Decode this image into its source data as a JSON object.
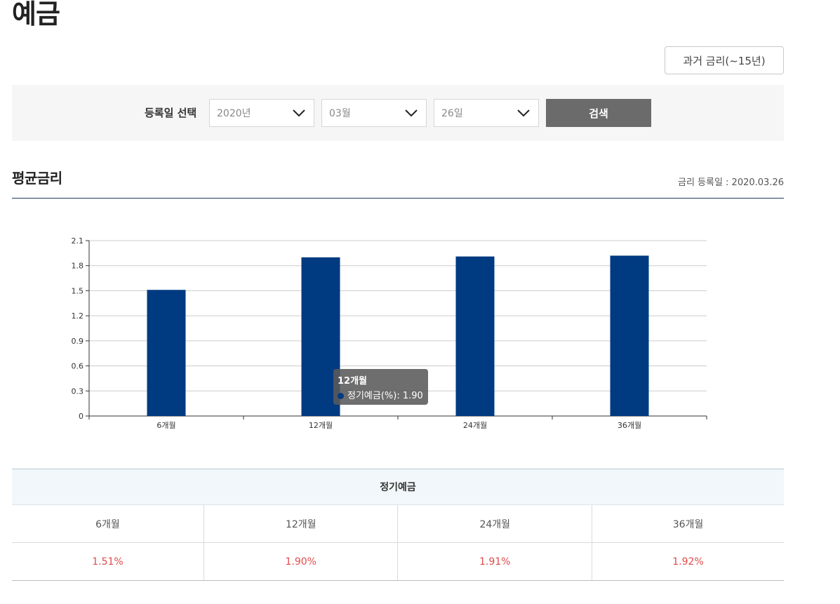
{
  "page": {
    "title": "예금"
  },
  "history_button": {
    "label": "과거 금리(~15년)"
  },
  "search": {
    "label": "등록일 선택",
    "year": "2020년",
    "month": "03월",
    "day": "26일",
    "button_label": "검색"
  },
  "section": {
    "title": "평균금리",
    "register_date": "금리 등록일 : 2020.03.26"
  },
  "colors": {
    "bar": "#003a80",
    "rate_text": "#e04a4a",
    "tooltip_bg": "#5a5a5a"
  },
  "chart_data": {
    "type": "bar",
    "categories": [
      "6개월",
      "12개월",
      "24개월",
      "36개월"
    ],
    "series": [
      {
        "name": "정기예금(%)",
        "values": [
          1.51,
          1.9,
          1.91,
          1.92
        ]
      }
    ],
    "ylim": [
      0,
      2.1
    ],
    "yticks": [
      "0",
      "0.3",
      "0.6",
      "0.9",
      "1.2",
      "1.5",
      "1.8",
      "2.1"
    ],
    "grid": true,
    "tooltip": {
      "title": "12개월",
      "text": "정기예금(%): 1.90"
    }
  },
  "table": {
    "group_header": "정기예금",
    "periods": [
      "6개월",
      "12개월",
      "24개월",
      "36개월"
    ],
    "rates": [
      "1.51%",
      "1.90%",
      "1.91%",
      "1.92%"
    ]
  }
}
